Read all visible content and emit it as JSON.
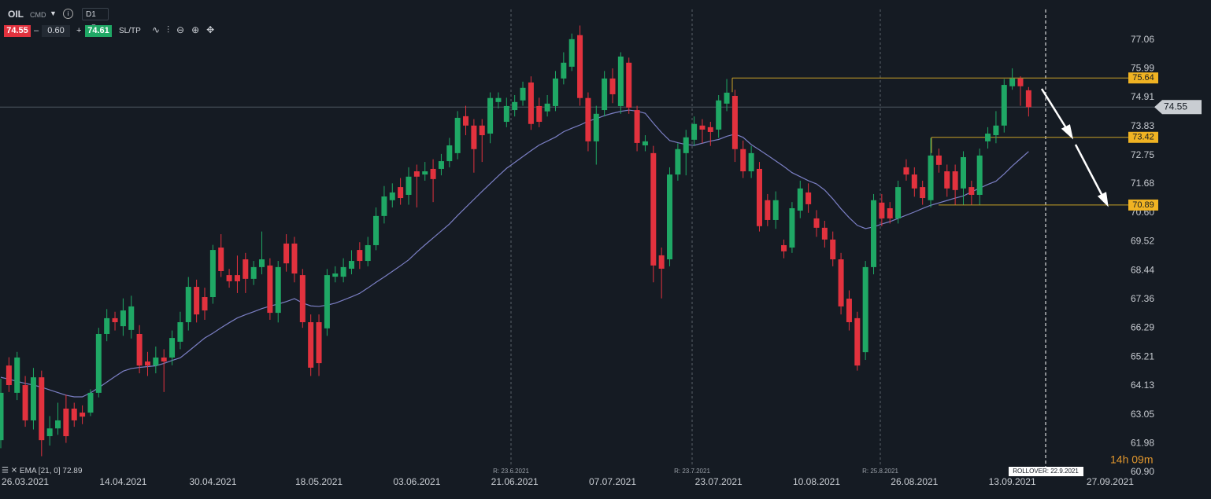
{
  "toolbar": {
    "symbol": "OIL",
    "market": "CMD",
    "interval": "D1",
    "volume": "0.60",
    "buy": 74.61,
    "sl_tp": "SL/TP"
  },
  "chart_data": {
    "type": "candlestick",
    "up_color": "#1fa865",
    "down_color": "#e2323e",
    "categories": [
      null,
      null,
      null,
      "26.03.2021",
      null,
      null,
      null,
      null,
      null,
      null,
      null,
      null,
      null,
      null,
      null,
      "14.04.2021",
      null,
      null,
      null,
      null,
      null,
      null,
      null,
      null,
      null,
      null,
      "30.04.2021",
      null,
      null,
      null,
      null,
      null,
      null,
      null,
      null,
      null,
      null,
      null,
      null,
      "18.05.2021",
      null,
      null,
      null,
      null,
      null,
      null,
      null,
      null,
      null,
      null,
      null,
      "03.06.2021",
      null,
      null,
      null,
      null,
      null,
      null,
      null,
      null,
      null,
      null,
      null,
      "21.06.2021",
      null,
      null,
      null,
      null,
      null,
      null,
      null,
      null,
      null,
      null,
      null,
      "07.07.2021",
      null,
      null,
      null,
      null,
      null,
      null,
      null,
      null,
      null,
      null,
      null,
      null,
      "23.07.2021",
      null,
      null,
      null,
      null,
      null,
      null,
      null,
      null,
      null,
      null,
      null,
      "10.08.2021",
      null,
      null,
      null,
      null,
      null,
      null,
      null,
      null,
      null,
      null,
      null,
      "26.08.2021",
      null,
      null,
      null,
      null,
      null,
      null,
      null,
      null,
      null,
      null,
      null,
      "13.09.2021",
      null,
      null,
      null,
      null,
      null,
      null,
      null,
      null,
      null,
      null,
      null,
      "27.09.2021"
    ],
    "ohlc": [
      [
        62.1,
        64.4,
        61.8,
        63.87
      ],
      [
        64.89,
        65.2,
        63.9,
        64.16
      ],
      [
        63.87,
        65.4,
        63.6,
        65.19
      ],
      [
        64.16,
        64.5,
        62.6,
        62.84
      ],
      [
        62.84,
        64.8,
        62.5,
        64.45
      ],
      [
        64.45,
        64.7,
        61.5,
        62.1
      ],
      [
        62.25,
        63.0,
        61.9,
        62.54
      ],
      [
        62.54,
        63.5,
        62.3,
        62.84
      ],
      [
        63.28,
        63.8,
        62.0,
        62.25
      ],
      [
        63.28,
        63.5,
        62.6,
        62.84
      ],
      [
        63.13,
        63.4,
        62.7,
        62.98
      ],
      [
        63.13,
        64.0,
        63.0,
        63.87
      ],
      [
        63.87,
        66.3,
        63.7,
        66.07
      ],
      [
        66.07,
        67.0,
        65.8,
        66.66
      ],
      [
        66.66,
        66.9,
        66.2,
        66.51
      ],
      [
        66.36,
        67.4,
        66.0,
        66.95
      ],
      [
        66.22,
        67.5,
        65.9,
        67.1
      ],
      [
        66.07,
        66.4,
        64.6,
        64.89
      ],
      [
        65.04,
        65.4,
        64.5,
        64.89
      ],
      [
        64.89,
        65.6,
        64.6,
        65.19
      ],
      [
        65.19,
        65.5,
        63.9,
        65.04
      ],
      [
        65.19,
        66.2,
        64.9,
        65.92
      ],
      [
        65.78,
        66.9,
        65.5,
        66.51
      ],
      [
        66.51,
        68.2,
        66.2,
        67.83
      ],
      [
        67.83,
        68.1,
        66.5,
        66.8
      ],
      [
        67.45,
        67.8,
        66.6,
        66.95
      ],
      [
        67.45,
        69.4,
        67.2,
        69.21
      ],
      [
        69.3,
        69.8,
        68.2,
        68.42
      ],
      [
        68.27,
        68.5,
        67.8,
        68.04
      ],
      [
        68.27,
        69.0,
        67.6,
        68.04
      ],
      [
        68.86,
        69.1,
        67.6,
        68.13
      ],
      [
        68.13,
        68.8,
        67.9,
        68.57
      ],
      [
        68.57,
        69.9,
        68.3,
        68.86
      ],
      [
        68.63,
        68.9,
        66.6,
        66.86
      ],
      [
        66.86,
        68.8,
        66.5,
        68.57
      ],
      [
        69.45,
        69.8,
        68.4,
        68.71
      ],
      [
        69.45,
        69.7,
        68.0,
        68.33
      ],
      [
        68.27,
        68.5,
        66.3,
        66.51
      ],
      [
        66.51,
        66.8,
        64.5,
        64.81
      ],
      [
        66.51,
        66.8,
        64.5,
        64.98
      ],
      [
        66.28,
        68.5,
        66.0,
        68.27
      ],
      [
        68.21,
        68.6,
        68.0,
        68.33
      ],
      [
        68.21,
        68.9,
        68.0,
        68.57
      ],
      [
        68.51,
        69.2,
        68.3,
        68.8
      ],
      [
        69.21,
        69.5,
        68.5,
        68.8
      ],
      [
        68.8,
        69.7,
        68.6,
        69.39
      ],
      [
        69.39,
        70.8,
        69.2,
        70.48
      ],
      [
        70.48,
        71.6,
        70.2,
        71.21
      ],
      [
        71.07,
        71.7,
        70.8,
        71.36
      ],
      [
        71.56,
        71.9,
        70.9,
        71.15
      ],
      [
        71.27,
        72.3,
        70.9,
        71.95
      ],
      [
        72.15,
        72.4,
        70.8,
        71.95
      ],
      [
        72.03,
        72.5,
        71.8,
        72.15
      ],
      [
        72.24,
        72.6,
        71.0,
        71.86
      ],
      [
        72.24,
        72.8,
        72.0,
        72.53
      ],
      [
        72.53,
        73.4,
        72.3,
        73.12
      ],
      [
        72.83,
        74.4,
        72.6,
        74.15
      ],
      [
        74.21,
        74.6,
        73.5,
        73.86
      ],
      [
        73.86,
        74.1,
        72.1,
        72.98
      ],
      [
        73.86,
        74.1,
        72.5,
        73.5
      ],
      [
        73.56,
        75.1,
        73.2,
        74.89
      ],
      [
        74.74,
        75.1,
        74.5,
        74.89
      ],
      [
        74.0,
        74.9,
        73.8,
        74.59
      ],
      [
        74.44,
        75.0,
        74.2,
        74.74
      ],
      [
        74.8,
        75.5,
        74.6,
        75.27
      ],
      [
        75.47,
        75.7,
        73.7,
        73.92
      ],
      [
        74.59,
        74.9,
        73.8,
        74.0
      ],
      [
        74.39,
        75.0,
        74.2,
        74.68
      ],
      [
        74.59,
        75.9,
        74.4,
        75.62
      ],
      [
        75.62,
        76.6,
        75.4,
        76.21
      ],
      [
        76.06,
        77.3,
        75.9,
        77.09
      ],
      [
        77.24,
        77.6,
        74.6,
        74.89
      ],
      [
        74.89,
        75.1,
        72.9,
        73.27
      ],
      [
        73.27,
        74.6,
        72.4,
        74.3
      ],
      [
        74.44,
        75.9,
        74.2,
        75.62
      ],
      [
        75.62,
        76.0,
        74.7,
        75.03
      ],
      [
        74.59,
        76.6,
        74.3,
        76.44
      ],
      [
        76.21,
        76.4,
        74.3,
        74.53
      ],
      [
        74.44,
        74.6,
        72.9,
        73.21
      ],
      [
        73.12,
        73.5,
        72.9,
        73.27
      ],
      [
        72.83,
        73.1,
        68.0,
        68.63
      ],
      [
        69.01,
        69.3,
        67.4,
        68.51
      ],
      [
        68.86,
        72.3,
        68.6,
        72.03
      ],
      [
        72.03,
        73.2,
        71.8,
        72.98
      ],
      [
        72.83,
        73.7,
        72.0,
        73.42
      ],
      [
        73.33,
        74.2,
        73.1,
        73.92
      ],
      [
        73.86,
        74.1,
        73.2,
        73.71
      ],
      [
        73.8,
        74.0,
        73.1,
        73.62
      ],
      [
        73.71,
        75.0,
        73.4,
        74.8
      ],
      [
        74.68,
        75.6,
        74.4,
        75.09
      ],
      [
        74.97,
        75.2,
        72.5,
        72.98
      ],
      [
        72.98,
        73.3,
        71.9,
        72.15
      ],
      [
        72.15,
        73.1,
        71.9,
        72.83
      ],
      [
        72.24,
        72.5,
        69.9,
        70.1
      ],
      [
        71.07,
        71.3,
        70.1,
        70.33
      ],
      [
        70.33,
        71.4,
        70.0,
        71.07
      ],
      [
        69.39,
        69.6,
        68.9,
        69.16
      ],
      [
        69.3,
        71.0,
        69.1,
        70.77
      ],
      [
        70.68,
        71.8,
        70.4,
        71.51
      ],
      [
        71.36,
        71.7,
        70.6,
        70.92
      ],
      [
        70.39,
        70.7,
        69.7,
        70.04
      ],
      [
        70.04,
        70.3,
        69.3,
        69.6
      ],
      [
        69.6,
        69.9,
        68.6,
        68.86
      ],
      [
        68.86,
        69.1,
        66.8,
        67.1
      ],
      [
        67.39,
        67.7,
        66.2,
        66.51
      ],
      [
        66.66,
        66.9,
        64.7,
        64.89
      ],
      [
        65.39,
        68.8,
        65.1,
        68.57
      ],
      [
        68.57,
        71.3,
        68.3,
        71.07
      ],
      [
        70.98,
        71.3,
        70.1,
        70.39
      ],
      [
        70.77,
        71.0,
        70.2,
        70.39
      ],
      [
        70.39,
        71.8,
        70.2,
        71.56
      ],
      [
        72.3,
        72.6,
        71.8,
        72.03
      ],
      [
        72.03,
        72.3,
        71.2,
        71.51
      ],
      [
        71.56,
        71.8,
        70.9,
        71.15
      ],
      [
        71.07,
        73.4,
        70.8,
        72.74
      ],
      [
        72.74,
        73.0,
        72.1,
        72.39
      ],
      [
        72.15,
        72.4,
        71.2,
        71.51
      ],
      [
        72.15,
        72.4,
        70.9,
        71.45
      ],
      [
        71.51,
        72.9,
        70.9,
        72.68
      ],
      [
        71.56,
        71.8,
        70.9,
        71.27
      ],
      [
        71.27,
        73.0,
        70.9,
        72.74
      ],
      [
        73.27,
        73.8,
        73.0,
        73.56
      ],
      [
        73.5,
        74.4,
        73.2,
        73.86
      ],
      [
        73.86,
        75.6,
        73.6,
        75.38
      ],
      [
        75.33,
        76.0,
        75.2,
        75.62
      ],
      [
        75.62,
        75.7,
        74.6,
        75.33
      ],
      [
        75.18,
        75.3,
        74.2,
        74.55
      ],
      null,
      null,
      null,
      null,
      null,
      null,
      null,
      null,
      null,
      null
    ],
    "ema": {
      "name": "EMA [21, 0]",
      "color": "#7b7fc4",
      "values": [
        64.45,
        64.38,
        64.3,
        64.22,
        64.16,
        64.08,
        63.98,
        63.88,
        63.78,
        63.72,
        63.72,
        63.87,
        64.06,
        64.27,
        64.48,
        64.68,
        64.78,
        64.82,
        64.85,
        64.88,
        64.97,
        65.08,
        65.18,
        65.42,
        65.67,
        65.92,
        66.1,
        66.3,
        66.49,
        66.67,
        66.79,
        66.9,
        67.02,
        67.11,
        67.19,
        67.28,
        67.39,
        67.23,
        67.12,
        67.1,
        67.15,
        67.22,
        67.34,
        67.46,
        67.59,
        67.79,
        68.0,
        68.2,
        68.41,
        68.62,
        68.84,
        69.13,
        69.4,
        69.66,
        69.92,
        70.18,
        70.5,
        70.8,
        71.1,
        71.4,
        71.69,
        71.98,
        72.26,
        72.48,
        72.7,
        72.92,
        73.13,
        73.28,
        73.43,
        73.63,
        73.76,
        73.88,
        74.02,
        74.12,
        74.23,
        74.32,
        74.39,
        74.44,
        74.4,
        74.32,
        73.95,
        73.6,
        73.3,
        73.22,
        73.15,
        73.12,
        73.2,
        73.28,
        73.34,
        73.46,
        73.54,
        73.42,
        73.15,
        72.95,
        72.75,
        72.54,
        72.33,
        72.1,
        71.95,
        71.8,
        71.68,
        71.45,
        71.12,
        70.75,
        70.42,
        70.13,
        70.01,
        70.07,
        70.18,
        70.27,
        70.39,
        70.51,
        70.63,
        70.76,
        70.88,
        70.97,
        71.06,
        71.15,
        71.23,
        71.38,
        71.52,
        71.66,
        71.78,
        72.05,
        72.35,
        72.62,
        72.89,
        null,
        null,
        null,
        null,
        null,
        null,
        null,
        null,
        null,
        null
      ]
    },
    "current_price": 74.55,
    "levels": [
      {
        "value": 75.64,
        "color": "#c9a227"
      },
      {
        "value": 73.42,
        "color": "#c9a227"
      },
      {
        "value": 70.89,
        "color": "#c9a227"
      }
    ],
    "ylim": [
      60.9,
      78.26
    ],
    "yticks": [
      77.06,
      75.99,
      74.91,
      73.83,
      72.75,
      71.68,
      {
        "value": 70.6,
        "label": "70.60"
      },
      69.52,
      68.44,
      67.36,
      66.29,
      65.21,
      64.13,
      63.05,
      61.98,
      {
        "value": 60.9,
        "label": "60.90"
      }
    ],
    "grid": false,
    "rollover_markers": [
      "R: 23.6.2021",
      "R: 23.7.2021",
      "R: 25.8.2021"
    ],
    "rollover": "ROLLOVER: 22.9.2021",
    "countdown": "14h 09m"
  }
}
